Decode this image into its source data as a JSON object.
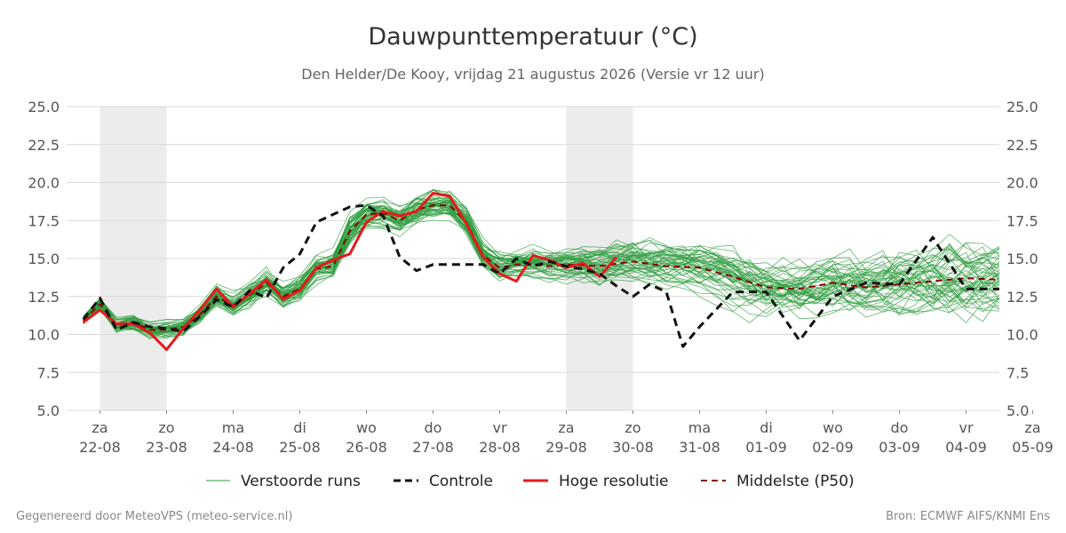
{
  "chart_data": {
    "type": "line",
    "title": "Dauwpunttemperatuur (°C)",
    "subtitle": "Den Helder/De Kooy, vrijdag 21 augustus 2026 (Versie vr 12 uur)",
    "ylim": [
      5.0,
      25.0
    ],
    "y_ticks": [
      "25.0",
      "22.5",
      "20.0",
      "17.5",
      "15.0",
      "12.5",
      "10.0",
      "7.5",
      "5.0"
    ],
    "x_range_days": [
      21.5,
      35.5
    ],
    "x_ticks": [
      {
        "day": "za",
        "date": "22-08"
      },
      {
        "day": "zo",
        "date": "23-08"
      },
      {
        "day": "ma",
        "date": "24-08"
      },
      {
        "day": "di",
        "date": "25-08"
      },
      {
        "day": "wo",
        "date": "26-08"
      },
      {
        "day": "do",
        "date": "27-08"
      },
      {
        "day": "vr",
        "date": "28-08"
      },
      {
        "day": "za",
        "date": "29-08"
      },
      {
        "day": "zo",
        "date": "30-08"
      },
      {
        "day": "ma",
        "date": "31-08"
      },
      {
        "day": "di",
        "date": "01-09"
      },
      {
        "day": "wo",
        "date": "02-09"
      },
      {
        "day": "do",
        "date": "03-09"
      },
      {
        "day": "vr",
        "date": "04-09"
      },
      {
        "day": "za",
        "date": "05-09"
      }
    ],
    "grid": true,
    "legend_position": "bottom",
    "ensemble_member_count": 50,
    "series": [
      {
        "name": "Controle",
        "style": "dashed",
        "color": "#111111",
        "x": [
          21.75,
          22.0,
          22.25,
          22.5,
          22.75,
          23.0,
          23.25,
          23.5,
          23.75,
          24.0,
          24.25,
          24.5,
          24.75,
          25.0,
          25.25,
          25.5,
          25.75,
          26.0,
          26.25,
          26.5,
          26.75,
          27.0,
          27.25,
          27.5,
          27.75,
          28.0,
          28.25,
          28.5,
          28.75,
          29.0,
          29.25,
          29.5,
          29.75,
          30.0,
          30.25,
          30.5,
          30.75,
          31.0,
          31.5,
          32.0,
          32.5,
          33.0,
          33.5,
          34.0,
          34.5,
          35.0,
          35.5
        ],
        "values": [
          11.0,
          12.4,
          10.3,
          10.8,
          10.5,
          10.4,
          10.2,
          11.2,
          12.3,
          11.8,
          12.9,
          12.4,
          14.4,
          15.3,
          17.4,
          17.9,
          18.4,
          18.5,
          17.8,
          15.1,
          14.2,
          14.6,
          14.6,
          14.6,
          14.6,
          14.0,
          15.0,
          14.5,
          14.8,
          14.5,
          14.3,
          14.0,
          13.2,
          12.5,
          13.3,
          12.8,
          9.2,
          10.5,
          12.8,
          12.8,
          9.6,
          12.5,
          13.4,
          13.3,
          16.4,
          13.0,
          13.0
        ]
      },
      {
        "name": "Hoge resolutie",
        "style": "solid",
        "color": "#e41a1c",
        "x": [
          21.75,
          22.0,
          22.25,
          22.5,
          22.75,
          23.0,
          23.25,
          23.5,
          23.75,
          24.0,
          24.25,
          24.5,
          24.75,
          25.0,
          25.25,
          25.5,
          25.75,
          26.0,
          26.25,
          26.5,
          26.75,
          27.0,
          27.25,
          27.5,
          27.75,
          28.0,
          28.25,
          28.5,
          28.75,
          29.0,
          29.25,
          29.5,
          29.75
        ],
        "values": [
          10.8,
          11.6,
          10.7,
          10.7,
          10.1,
          9.0,
          10.4,
          11.6,
          13.0,
          11.8,
          12.7,
          13.6,
          12.3,
          12.9,
          14.4,
          14.9,
          15.3,
          17.4,
          18.1,
          17.8,
          18.1,
          19.3,
          19.1,
          17.3,
          15.1,
          14.0,
          13.5,
          15.2,
          14.9,
          14.4,
          14.7,
          13.8,
          15.1
        ]
      },
      {
        "name": "Middelste (P50)",
        "style": "dashed",
        "color": "#8b0000",
        "x": [
          21.75,
          22.0,
          22.25,
          22.5,
          22.75,
          23.0,
          23.25,
          23.5,
          23.75,
          24.0,
          24.25,
          24.5,
          24.75,
          25.0,
          25.25,
          25.5,
          25.75,
          26.0,
          26.25,
          26.5,
          26.75,
          27.0,
          27.25,
          27.5,
          27.75,
          28.0,
          28.25,
          28.5,
          28.75,
          29.0,
          29.5,
          30.0,
          30.5,
          31.0,
          31.5,
          32.0,
          32.5,
          33.0,
          33.5,
          34.0,
          34.5,
          35.0,
          35.5
        ],
        "values": [
          10.9,
          12.0,
          10.6,
          10.8,
          10.3,
          10.3,
          10.5,
          11.3,
          12.5,
          11.9,
          12.6,
          13.4,
          12.5,
          13.0,
          14.3,
          14.5,
          16.8,
          17.9,
          18.0,
          17.5,
          18.2,
          18.5,
          18.5,
          17.4,
          15.2,
          14.4,
          14.6,
          14.6,
          14.5,
          14.6,
          14.5,
          14.8,
          14.5,
          14.4,
          13.8,
          13.1,
          13.0,
          13.4,
          13.1,
          13.3,
          13.5,
          13.7,
          13.6
        ]
      }
    ],
    "legend": [
      "Verstoorde runs",
      "Controle",
      "Hoge resolutie",
      "Middelste (P50)"
    ]
  },
  "footer": {
    "left": "Gegenereerd door MeteoVPS (meteo-service.nl)",
    "right": "Bron: ECMWF AIFS/KNMI Ens"
  },
  "colors": {
    "ensemble": "#2e9c3e",
    "weekend_band": "#ececec",
    "grid": "#d9d9d9"
  }
}
